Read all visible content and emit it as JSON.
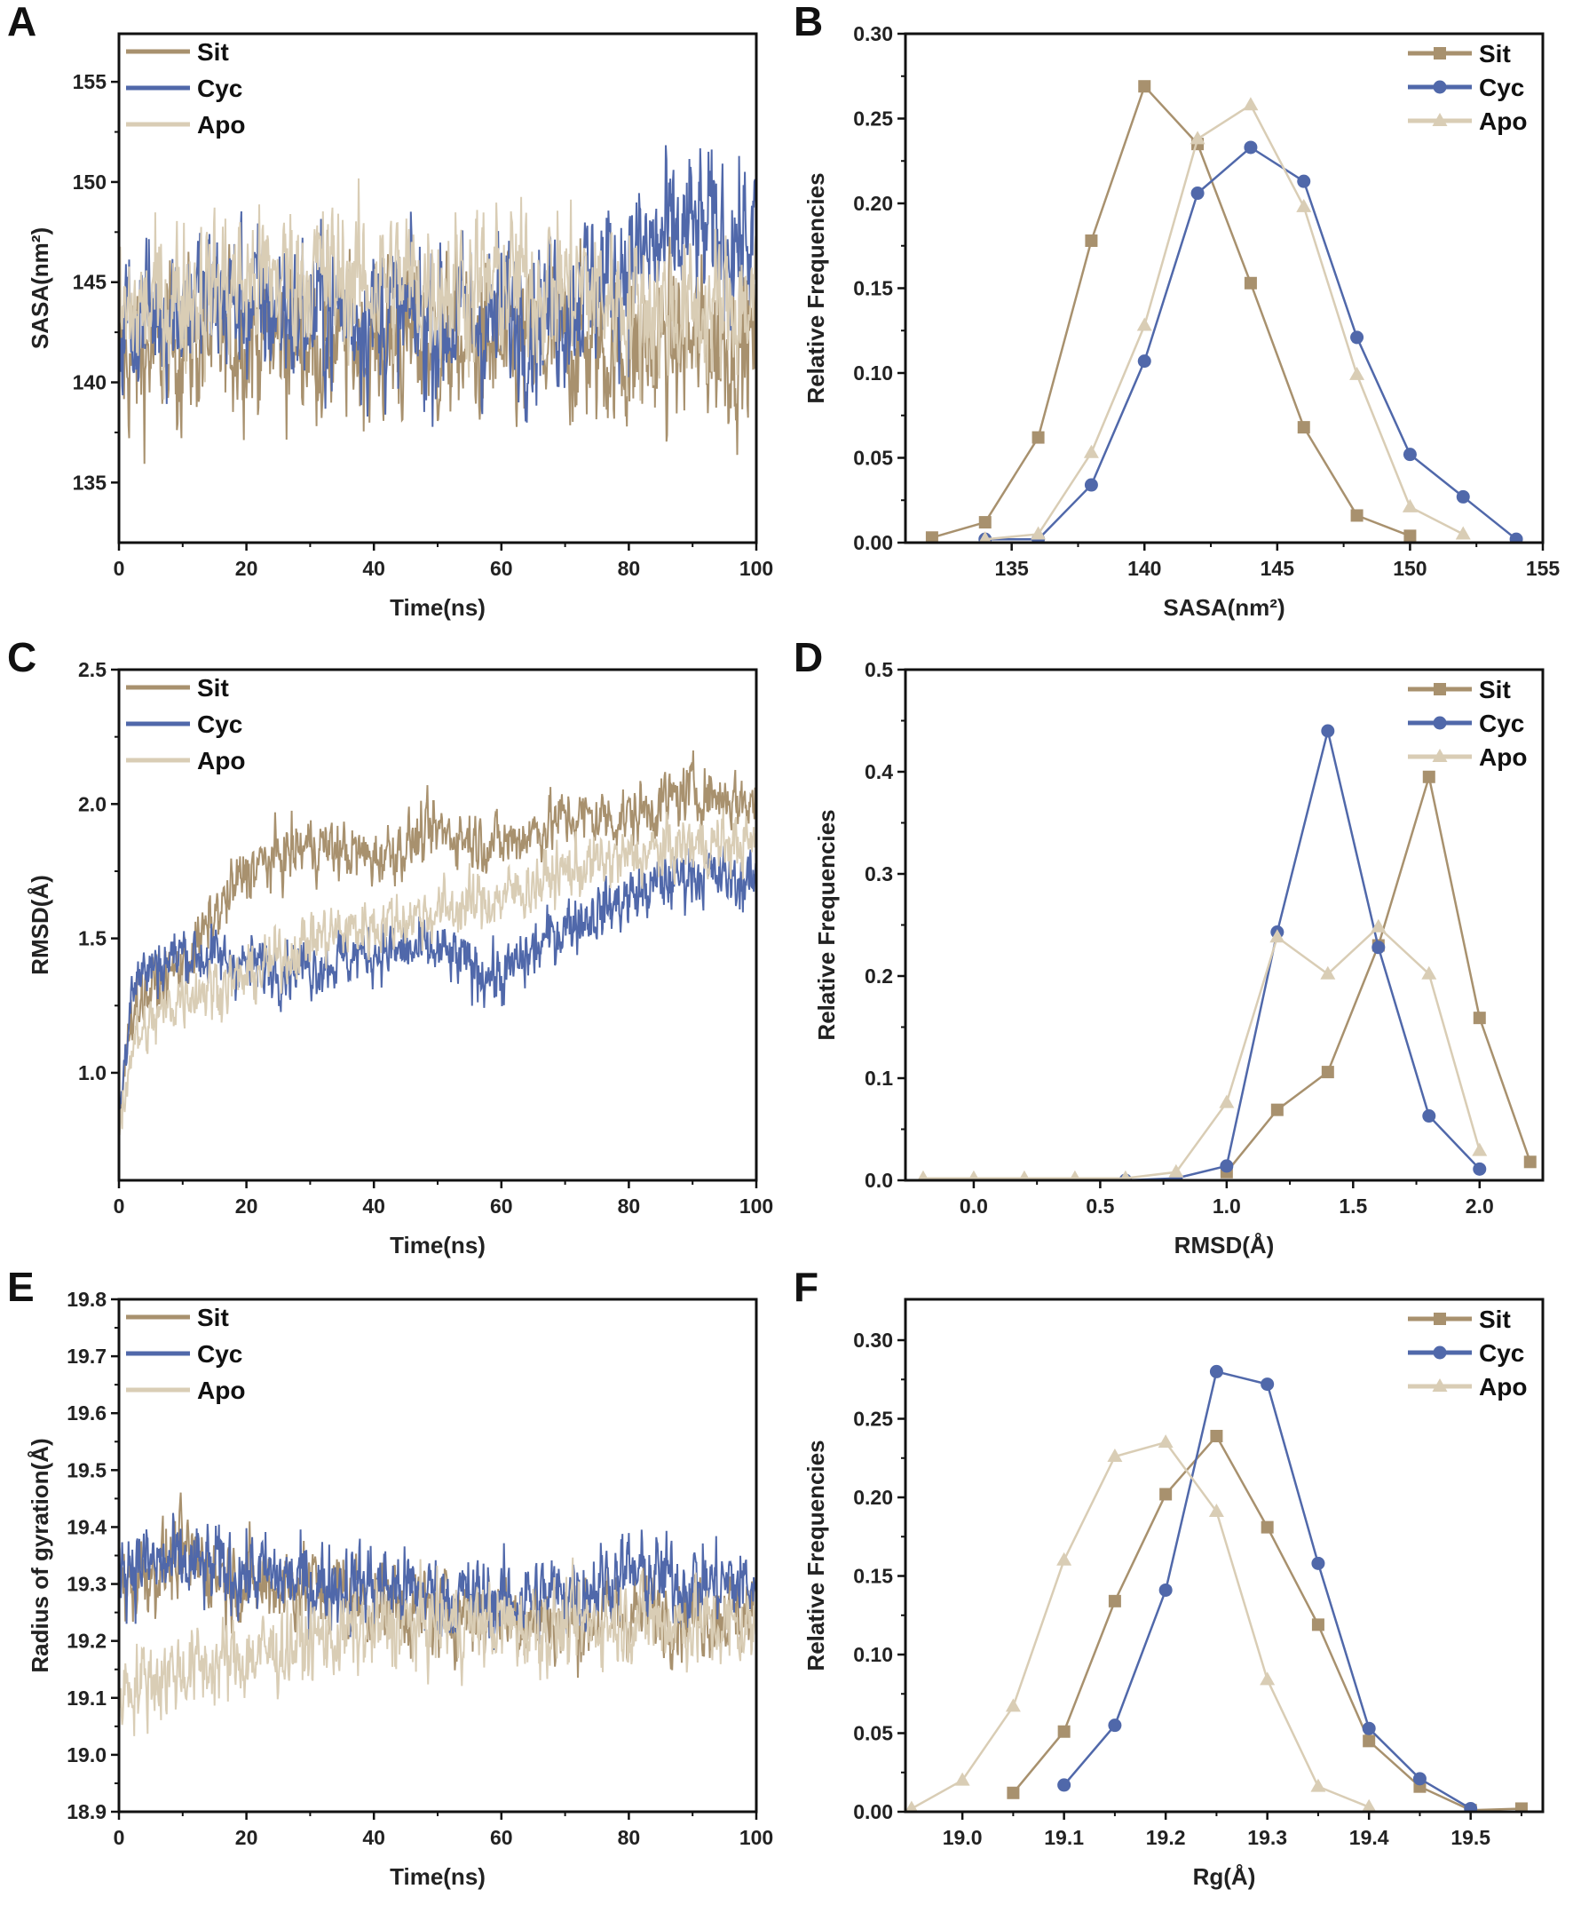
{
  "colors": {
    "Sit": "#a8916e",
    "Cyc": "#5068aa",
    "Apo": "#d9cdb5"
  },
  "chart_data": [
    {
      "panel": "A",
      "type": "line",
      "xlabel": "Time(ns)",
      "ylabel": "SASA(nm²)",
      "xlim": [
        0,
        100
      ],
      "ylim": [
        132,
        157.4
      ],
      "xticks": [
        0,
        20,
        40,
        60,
        80,
        100
      ],
      "yticks": [
        135,
        140,
        145,
        150,
        155
      ],
      "legend": "top-left",
      "series": [
        {
          "name": "Sit",
          "trend_x": [
            0,
            10,
            20,
            30,
            40,
            50,
            60,
            70,
            80,
            90,
            100
          ],
          "trend_y": [
            141,
            142,
            142.5,
            142,
            142,
            142,
            141.5,
            142,
            141.5,
            142,
            142
          ],
          "noise": 3.2
        },
        {
          "name": "Cyc",
          "trend_x": [
            0,
            10,
            20,
            30,
            40,
            50,
            60,
            70,
            80,
            90,
            100
          ],
          "trend_y": [
            143,
            144,
            144,
            143.5,
            143.5,
            143,
            143,
            144,
            146,
            147.5,
            147
          ],
          "noise": 3.2
        },
        {
          "name": "Apo",
          "trend_x": [
            0,
            10,
            20,
            30,
            40,
            50,
            60,
            70,
            80,
            90,
            100
          ],
          "trend_y": [
            143,
            144.5,
            145,
            145.5,
            145,
            145,
            145,
            145,
            144,
            143.5,
            144
          ],
          "noise": 3.0
        }
      ]
    },
    {
      "panel": "B",
      "type": "line",
      "xlabel": "SASA(nm²)",
      "ylabel": "Relative Frequencies",
      "xlim": [
        131,
        155
      ],
      "ylim": [
        0,
        0.3
      ],
      "xticks": [
        135,
        140,
        145,
        150,
        155
      ],
      "yticks": [
        0,
        0.05,
        0.1,
        0.15,
        0.2,
        0.25,
        0.3
      ],
      "ydecimals": 2,
      "legend": "top-right",
      "series": [
        {
          "name": "Sit",
          "marker": "square",
          "x": [
            132,
            134,
            136,
            138,
            140,
            142,
            144,
            146,
            148,
            150
          ],
          "y": [
            0.003,
            0.012,
            0.062,
            0.178,
            0.269,
            0.235,
            0.153,
            0.068,
            0.016,
            0.004
          ]
        },
        {
          "name": "Cyc",
          "marker": "circle",
          "x": [
            134,
            136,
            138,
            140,
            142,
            144,
            146,
            148,
            150,
            152,
            154
          ],
          "y": [
            0.002,
            0.002,
            0.034,
            0.107,
            0.206,
            0.233,
            0.213,
            0.121,
            0.052,
            0.027,
            0.002
          ]
        },
        {
          "name": "Apo",
          "marker": "triangle",
          "x": [
            134,
            136,
            138,
            140,
            142,
            144,
            146,
            148,
            150,
            152
          ],
          "y": [
            0.002,
            0.005,
            0.053,
            0.128,
            0.238,
            0.258,
            0.198,
            0.099,
            0.021,
            0.005
          ]
        }
      ]
    },
    {
      "panel": "C",
      "type": "line",
      "xlabel": "Time(ns)",
      "ylabel": "RMSD(Å)",
      "xlim": [
        0,
        100
      ],
      "ylim": [
        0.6,
        2.5
      ],
      "xticks": [
        0,
        20,
        40,
        60,
        80,
        100
      ],
      "yticks": [
        1.0,
        1.5,
        2.0,
        2.5
      ],
      "ydecimals": 1,
      "legend": "top-left",
      "series": [
        {
          "name": "Sit",
          "trend_x": [
            0,
            2,
            10,
            20,
            30,
            40,
            50,
            60,
            70,
            80,
            90,
            100
          ],
          "trend_y": [
            0.8,
            1.25,
            1.4,
            1.75,
            1.85,
            1.8,
            1.9,
            1.85,
            1.95,
            1.95,
            2.05,
            2.0
          ],
          "noise": 0.09
        },
        {
          "name": "Cyc",
          "trend_x": [
            0,
            2,
            10,
            20,
            30,
            40,
            50,
            60,
            70,
            80,
            90,
            100
          ],
          "trend_y": [
            0.8,
            1.35,
            1.45,
            1.4,
            1.4,
            1.45,
            1.45,
            1.35,
            1.55,
            1.65,
            1.75,
            1.7
          ],
          "noise": 0.09
        },
        {
          "name": "Apo",
          "trend_x": [
            0,
            2,
            10,
            20,
            30,
            40,
            50,
            60,
            70,
            80,
            90,
            100
          ],
          "trend_y": [
            0.8,
            1.1,
            1.3,
            1.35,
            1.5,
            1.55,
            1.6,
            1.65,
            1.75,
            1.8,
            1.85,
            1.85
          ],
          "noise": 0.09
        }
      ]
    },
    {
      "panel": "D",
      "type": "line",
      "xlabel": "RMSD(Å)",
      "ylabel": "Relative Frequencies",
      "xlim": [
        -0.27,
        2.25
      ],
      "ylim": [
        0,
        0.5
      ],
      "xticks": [
        0.0,
        0.5,
        1.0,
        1.5,
        2.0
      ],
      "xdecimals": 1,
      "yticks": [
        0.0,
        0.1,
        0.2,
        0.3,
        0.4,
        0.5
      ],
      "ydecimals": 1,
      "legend": "top-right",
      "series": [
        {
          "name": "Sit",
          "marker": "square",
          "x": [
            1.0,
            1.2,
            1.4,
            1.6,
            1.8,
            2.0,
            2.2
          ],
          "y": [
            0.008,
            0.069,
            0.106,
            0.23,
            0.395,
            0.159,
            0.018
          ]
        },
        {
          "name": "Cyc",
          "marker": "circle",
          "x": [
            0.6,
            0.8,
            1.0,
            1.2,
            1.4,
            1.6,
            1.8,
            2.0
          ],
          "y": [
            0.0,
            0.002,
            0.014,
            0.243,
            0.44,
            0.228,
            0.063,
            0.011
          ]
        },
        {
          "name": "Apo",
          "marker": "triangle",
          "x": [
            -0.2,
            0.0,
            0.2,
            0.4,
            0.6,
            0.8,
            1.0,
            1.2,
            1.4,
            1.6,
            1.8,
            2.0
          ],
          "y": [
            0.002,
            0.002,
            0.002,
            0.002,
            0.002,
            0.008,
            0.076,
            0.238,
            0.202,
            0.248,
            0.202,
            0.029
          ]
        }
      ]
    },
    {
      "panel": "E",
      "type": "line",
      "xlabel": "Time(ns)",
      "ylabel": "Radius of gyration(Å)",
      "xlim": [
        0,
        100
      ],
      "ylim": [
        18.9,
        19.8
      ],
      "xticks": [
        0,
        20,
        40,
        60,
        80,
        100
      ],
      "yticks": [
        18.9,
        19.0,
        19.1,
        19.2,
        19.3,
        19.4,
        19.5,
        19.6,
        19.7,
        19.8
      ],
      "ydecimals": 1,
      "legend": "top-left",
      "series": [
        {
          "name": "Sit",
          "trend_x": [
            0,
            10,
            20,
            30,
            40,
            50,
            60,
            70,
            80,
            90,
            100
          ],
          "trend_y": [
            19.3,
            19.35,
            19.3,
            19.3,
            19.27,
            19.25,
            19.25,
            19.23,
            19.25,
            19.25,
            19.25
          ],
          "noise": 0.06
        },
        {
          "name": "Cyc",
          "trend_x": [
            0,
            10,
            20,
            30,
            40,
            50,
            60,
            70,
            80,
            90,
            100
          ],
          "trend_y": [
            19.34,
            19.33,
            19.32,
            19.3,
            19.3,
            19.28,
            19.27,
            19.28,
            19.32,
            19.3,
            19.3
          ],
          "noise": 0.06
        },
        {
          "name": "Apo",
          "trend_x": [
            0,
            10,
            20,
            30,
            40,
            50,
            60,
            70,
            80,
            90,
            100
          ],
          "trend_y": [
            19.12,
            19.15,
            19.17,
            19.2,
            19.22,
            19.23,
            19.23,
            19.22,
            19.24,
            19.23,
            19.22
          ],
          "noise": 0.06
        }
      ]
    },
    {
      "panel": "F",
      "type": "line",
      "xlabel": "Rg(Å)",
      "ylabel": "Relative Frequencies",
      "xlim": [
        18.944,
        19.571
      ],
      "ylim": [
        0,
        0.326
      ],
      "xticks": [
        19.0,
        19.1,
        19.2,
        19.3,
        19.4,
        19.5
      ],
      "xdecimals": 1,
      "yticks": [
        0,
        0.05,
        0.1,
        0.15,
        0.2,
        0.25,
        0.3
      ],
      "ydecimals": 2,
      "legend": "top-right",
      "series": [
        {
          "name": "Sit",
          "marker": "square",
          "x": [
            19.05,
            19.1,
            19.15,
            19.2,
            19.25,
            19.3,
            19.35,
            19.4,
            19.45,
            19.5,
            19.55
          ],
          "y": [
            0.012,
            0.051,
            0.134,
            0.202,
            0.239,
            0.181,
            0.119,
            0.045,
            0.016,
            0.001,
            0.002
          ]
        },
        {
          "name": "Cyc",
          "marker": "circle",
          "x": [
            19.1,
            19.15,
            19.2,
            19.25,
            19.3,
            19.35,
            19.4,
            19.45,
            19.5
          ],
          "y": [
            0.017,
            0.055,
            0.141,
            0.28,
            0.272,
            0.158,
            0.053,
            0.021,
            0.002
          ]
        },
        {
          "name": "Apo",
          "marker": "triangle",
          "x": [
            18.95,
            19.0,
            19.05,
            19.1,
            19.15,
            19.2,
            19.25,
            19.3,
            19.35,
            19.4
          ],
          "y": [
            0.002,
            0.02,
            0.067,
            0.16,
            0.226,
            0.235,
            0.191,
            0.084,
            0.016,
            0.003
          ]
        }
      ]
    }
  ]
}
